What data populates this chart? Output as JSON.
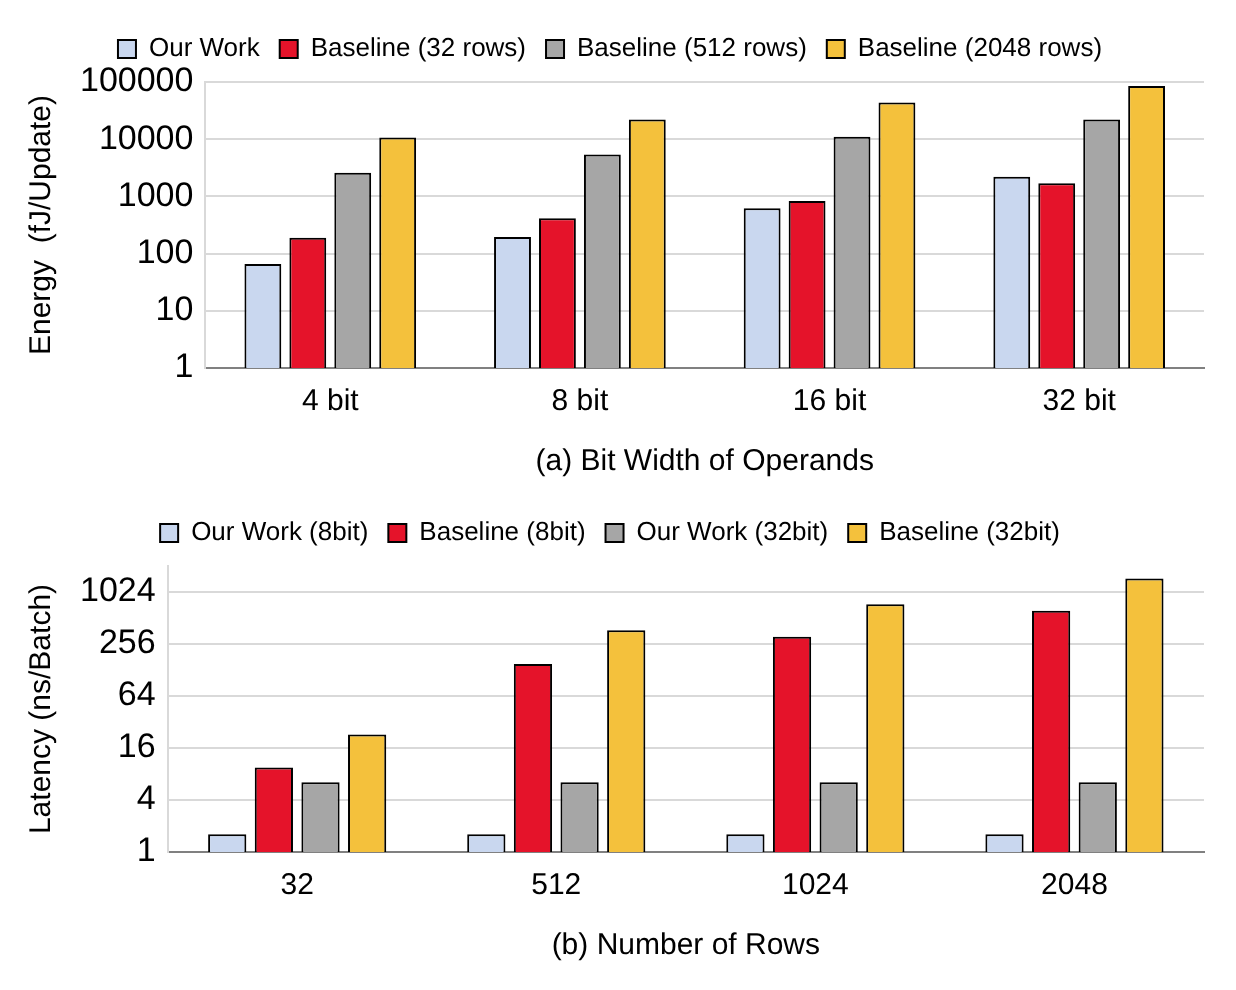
{
  "chart_data": [
    {
      "type": "bar",
      "xlabel": "(a) Bit Width of Operands",
      "ylabel": "Energy  (fJ/Update)",
      "categories": [
        "4 bit",
        "8 bit",
        "16 bit",
        "32 bit"
      ],
      "log": "y",
      "ylim": [
        1,
        100000
      ],
      "yticks": [
        1,
        10,
        100,
        1000,
        10000,
        100000
      ],
      "grid": "y",
      "legend": "top",
      "series": [
        {
          "name": "Our Work",
          "color": "#c9d7ef",
          "values": [
            66,
            195,
            620,
            2200
          ]
        },
        {
          "name": "Baseline (32 rows)",
          "color": "#e5132a",
          "values": [
            190,
            415,
            830,
            1700
          ]
        },
        {
          "name": "Baseline (512 rows)",
          "color": "#a6a6a6",
          "values": [
            2600,
            5400,
            11000,
            22000
          ]
        },
        {
          "name": "Baseline (2048 rows)",
          "color": "#f4c13c",
          "values": [
            10700,
            22000,
            44000,
            85000
          ]
        }
      ]
    },
    {
      "type": "bar",
      "xlabel": "(b) Number of Rows",
      "ylabel": "Latency (ns/Batch)",
      "categories": [
        "32",
        "512",
        "1024",
        "2048"
      ],
      "log": "y",
      "ylim": [
        1,
        2048
      ],
      "yticks": [
        1,
        4,
        16,
        64,
        256,
        1024
      ],
      "grid": "y",
      "legend": "top",
      "series": [
        {
          "name": "Our Work (8bit)",
          "color": "#c9d7ef",
          "values": [
            1.6,
            1.6,
            1.6,
            1.6
          ]
        },
        {
          "name": "Baseline (8bit)",
          "color": "#e5132a",
          "values": [
            9.5,
            150,
            310,
            620
          ]
        },
        {
          "name": "Our Work (32bit)",
          "color": "#a6a6a6",
          "values": [
            6.4,
            6.4,
            6.4,
            6.4
          ]
        },
        {
          "name": "Baseline (32bit)",
          "color": "#f4c13c",
          "values": [
            23,
            370,
            740,
            1470
          ]
        }
      ]
    }
  ]
}
